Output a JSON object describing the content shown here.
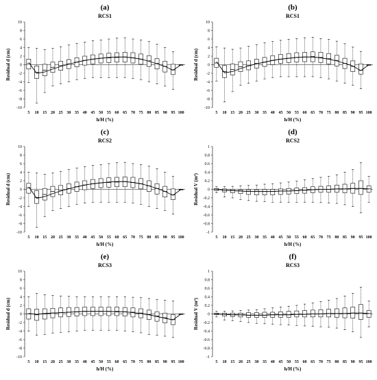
{
  "chart_data": [
    {
      "type": "boxplot",
      "panel_label": "(a)",
      "title": "RCS1",
      "xlabel": "h/H (%)",
      "ylabel": "Residual d (cm)",
      "ylim": [
        -10,
        10
      ],
      "yticks": [
        -10,
        -8,
        -6,
        -4,
        -2,
        0,
        2,
        4,
        6,
        8,
        10
      ],
      "categories": [
        "5",
        "10",
        "15",
        "20",
        "25",
        "30",
        "35",
        "40",
        "45",
        "50",
        "55",
        "60",
        "65",
        "70",
        "75",
        "80",
        "85",
        "90",
        "95",
        "100"
      ],
      "series": [
        {
          "median": [
            0.2,
            -1.8,
            -1.3,
            -0.6,
            -0.2,
            0.2,
            0.6,
            1.0,
            1.3,
            1.5,
            1.6,
            1.7,
            1.8,
            1.6,
            1.3,
            0.9,
            0.3,
            -0.4,
            -1.2,
            0.0
          ],
          "q1": [
            -1.0,
            -3.2,
            -2.6,
            -1.8,
            -1.3,
            -0.9,
            -0.5,
            -0.1,
            0.2,
            0.4,
            0.5,
            0.6,
            0.6,
            0.4,
            0.1,
            -0.4,
            -1.0,
            -1.7,
            -2.3,
            0.0
          ],
          "q3": [
            1.3,
            -0.3,
            0.1,
            0.6,
            0.8,
            1.2,
            1.6,
            2.0,
            2.3,
            2.5,
            2.7,
            2.8,
            2.9,
            2.8,
            2.5,
            2.1,
            1.4,
            0.8,
            0.1,
            0.0
          ],
          "whisker_low": [
            -4.2,
            -9.0,
            -6.5,
            -5.0,
            -4.5,
            -4.0,
            -3.5,
            -3.2,
            -3.0,
            -3.0,
            -3.0,
            -3.0,
            -3.0,
            -3.2,
            -3.5,
            -4.0,
            -4.5,
            -5.0,
            -5.8,
            0.0
          ],
          "whisker_high": [
            4.0,
            3.8,
            3.5,
            3.8,
            4.2,
            4.6,
            5.0,
            5.3,
            5.6,
            5.8,
            6.0,
            6.2,
            6.3,
            6.0,
            5.8,
            5.4,
            4.8,
            4.0,
            3.0,
            0.0
          ],
          "trend": [
            0.5,
            -2.0,
            -1.7,
            -1.0,
            -0.4,
            0.1,
            0.6,
            1.0,
            1.3,
            1.5,
            1.7,
            1.8,
            1.8,
            1.6,
            1.3,
            0.8,
            0.2,
            -0.4,
            -1.3,
            0.0
          ]
        }
      ]
    },
    {
      "type": "boxplot",
      "panel_label": "(b)",
      "title": "RCS1",
      "xlabel": "h/H (%)",
      "ylabel": "Residual d (cm)",
      "ylim": [
        -10,
        10
      ],
      "yticks": [
        -10,
        -8,
        -6,
        -4,
        -2,
        0,
        2,
        4,
        6,
        8,
        10
      ],
      "categories": [
        "5",
        "10",
        "15",
        "20",
        "25",
        "30",
        "35",
        "40",
        "45",
        "50",
        "55",
        "60",
        "65",
        "70",
        "75",
        "80",
        "85",
        "90",
        "95",
        "100"
      ],
      "series": [
        {
          "median": [
            0.4,
            -1.6,
            -1.1,
            -0.5,
            -0.1,
            0.3,
            0.6,
            1.0,
            1.3,
            1.5,
            1.7,
            1.8,
            1.9,
            1.7,
            1.4,
            1.0,
            0.3,
            -0.4,
            -1.3,
            0.0
          ],
          "q1": [
            -0.6,
            -3.0,
            -2.4,
            -1.6,
            -1.2,
            -0.8,
            -0.4,
            0.0,
            0.3,
            0.5,
            0.6,
            0.7,
            0.7,
            0.5,
            0.2,
            -0.3,
            -0.9,
            -1.6,
            -2.2,
            0.0
          ],
          "q3": [
            1.5,
            -0.2,
            0.2,
            0.7,
            0.9,
            1.3,
            1.7,
            2.1,
            2.4,
            2.6,
            2.8,
            2.9,
            3.0,
            2.9,
            2.6,
            2.2,
            1.5,
            0.9,
            0.2,
            0.0
          ],
          "whisker_low": [
            -3.8,
            -8.7,
            -6.3,
            -4.8,
            -4.3,
            -3.8,
            -3.3,
            -3.0,
            -2.8,
            -2.8,
            -2.8,
            -2.8,
            -2.8,
            -3.0,
            -3.3,
            -3.8,
            -4.3,
            -4.8,
            -5.6,
            0.0
          ],
          "whisker_high": [
            4.2,
            3.9,
            3.6,
            3.9,
            4.3,
            4.7,
            5.1,
            5.4,
            5.7,
            5.9,
            6.1,
            6.3,
            6.4,
            6.1,
            5.9,
            5.5,
            4.9,
            4.1,
            3.1,
            0.0
          ],
          "trend": [
            0.7,
            -1.9,
            -1.6,
            -0.9,
            -0.3,
            0.2,
            0.6,
            1.0,
            1.3,
            1.5,
            1.7,
            1.8,
            1.8,
            1.6,
            1.3,
            0.9,
            0.3,
            -0.3,
            -1.4,
            0.0
          ]
        }
      ]
    },
    {
      "type": "boxplot",
      "panel_label": "(c)",
      "title": "RCS2",
      "xlabel": "h/H (%)",
      "ylabel": "Residual d (cm)",
      "ylim": [
        -10,
        10
      ],
      "yticks": [
        -10,
        -8,
        -6,
        -4,
        -2,
        0,
        2,
        4,
        6,
        8,
        10
      ],
      "categories": [
        "5",
        "10",
        "15",
        "20",
        "25",
        "30",
        "35",
        "40",
        "45",
        "50",
        "55",
        "60",
        "65",
        "70",
        "75",
        "80",
        "85",
        "90",
        "95",
        "100"
      ],
      "series": [
        {
          "median": [
            0.3,
            -1.9,
            -1.2,
            -0.5,
            -0.2,
            0.2,
            0.6,
            1.0,
            1.3,
            1.5,
            1.6,
            1.7,
            1.8,
            1.6,
            1.3,
            0.8,
            0.2,
            -0.5,
            -1.3,
            0.0
          ],
          "q1": [
            -0.9,
            -3.3,
            -2.5,
            -1.7,
            -1.3,
            -0.9,
            -0.5,
            -0.1,
            0.2,
            0.4,
            0.5,
            0.6,
            0.6,
            0.4,
            0.1,
            -0.5,
            -1.1,
            -1.8,
            -2.4,
            0.0
          ],
          "q3": [
            1.4,
            -0.3,
            0.2,
            0.7,
            0.9,
            1.3,
            1.7,
            2.0,
            2.3,
            2.5,
            2.7,
            2.8,
            2.9,
            2.8,
            2.5,
            2.0,
            1.3,
            0.7,
            0.1,
            0.0
          ],
          "whisker_low": [
            -4.0,
            -8.9,
            -6.4,
            -5.0,
            -4.5,
            -4.0,
            -3.5,
            -3.2,
            -3.0,
            -3.0,
            -3.0,
            -3.0,
            -3.0,
            -3.2,
            -3.5,
            -4.0,
            -4.5,
            -5.0,
            -5.8,
            0.0
          ],
          "whisker_high": [
            4.0,
            3.8,
            3.5,
            3.8,
            4.2,
            4.6,
            5.0,
            5.3,
            5.6,
            5.8,
            6.0,
            6.2,
            6.3,
            6.0,
            5.8,
            5.4,
            4.8,
            4.0,
            3.0,
            0.0
          ],
          "trend": [
            0.6,
            -2.1,
            -1.7,
            -1.0,
            -0.4,
            0.1,
            0.6,
            1.0,
            1.3,
            1.5,
            1.7,
            1.8,
            1.8,
            1.6,
            1.3,
            0.8,
            0.2,
            -0.5,
            -1.4,
            0.0
          ]
        }
      ]
    },
    {
      "type": "boxplot",
      "panel_label": "(d)",
      "title": "RCS2",
      "xlabel": "h/H (%)",
      "ylabel": "Residual V (m³)",
      "ylim": [
        -1,
        1
      ],
      "yticks": [
        -1,
        -0.8,
        -0.6,
        -0.4,
        -0.2,
        0,
        0.2,
        0.4,
        0.6,
        0.8,
        1
      ],
      "categories": [
        "5",
        "10",
        "15",
        "20",
        "25",
        "30",
        "35",
        "40",
        "45",
        "50",
        "55",
        "60",
        "65",
        "70",
        "75",
        "80",
        "85",
        "90",
        "95",
        "100"
      ],
      "series": [
        {
          "median": [
            0.0,
            -0.02,
            -0.03,
            -0.04,
            -0.05,
            -0.05,
            -0.05,
            -0.05,
            -0.04,
            -0.04,
            -0.03,
            -0.02,
            -0.01,
            0.0,
            0.0,
            0.01,
            0.01,
            0.02,
            0.02,
            0.01
          ],
          "q1": [
            -0.03,
            -0.06,
            -0.08,
            -0.1,
            -0.12,
            -0.13,
            -0.13,
            -0.13,
            -0.12,
            -0.11,
            -0.1,
            -0.09,
            -0.08,
            -0.07,
            -0.07,
            -0.07,
            -0.08,
            -0.09,
            -0.12,
            -0.07
          ],
          "q3": [
            0.02,
            0.01,
            0.0,
            -0.01,
            -0.01,
            -0.01,
            0.0,
            0.0,
            0.01,
            0.02,
            0.03,
            0.04,
            0.06,
            0.07,
            0.08,
            0.1,
            0.12,
            0.14,
            0.2,
            0.08
          ],
          "whisker_low": [
            -0.08,
            -0.18,
            -0.2,
            -0.24,
            -0.26,
            -0.28,
            -0.29,
            -0.3,
            -0.3,
            -0.3,
            -0.3,
            -0.3,
            -0.3,
            -0.31,
            -0.32,
            -0.33,
            -0.36,
            -0.4,
            -0.55,
            -0.3
          ],
          "whisker_high": [
            0.06,
            0.06,
            0.07,
            0.08,
            0.09,
            0.1,
            0.12,
            0.13,
            0.15,
            0.17,
            0.19,
            0.22,
            0.25,
            0.28,
            0.3,
            0.34,
            0.4,
            0.46,
            0.62,
            0.3
          ],
          "trend": [
            0.0,
            -0.02,
            -0.03,
            -0.04,
            -0.05,
            -0.05,
            -0.05,
            -0.05,
            -0.04,
            -0.04,
            -0.03,
            -0.02,
            -0.01,
            0.0,
            0.0,
            0.01,
            0.01,
            0.02,
            0.02,
            0.01
          ]
        }
      ]
    },
    {
      "type": "boxplot",
      "panel_label": "(e)",
      "title": "RCS3",
      "xlabel": "h/H (%)",
      "ylabel": "Residual d (cm)",
      "ylim": [
        -10,
        10
      ],
      "yticks": [
        -10,
        -8,
        -6,
        -4,
        -2,
        0,
        2,
        4,
        6,
        8,
        10
      ],
      "categories": [
        "5",
        "10",
        "15",
        "20",
        "25",
        "30",
        "35",
        "40",
        "45",
        "50",
        "55",
        "60",
        "65",
        "70",
        "75",
        "80",
        "85",
        "90",
        "95",
        "100"
      ],
      "series": [
        {
          "median": [
            0.0,
            -0.2,
            0.0,
            0.2,
            0.3,
            0.4,
            0.5,
            0.6,
            0.6,
            0.6,
            0.6,
            0.6,
            0.5,
            0.4,
            0.2,
            -0.1,
            -0.5,
            -0.9,
            -1.3,
            0.0
          ],
          "q1": [
            -1.2,
            -1.5,
            -1.2,
            -0.9,
            -0.7,
            -0.6,
            -0.5,
            -0.4,
            -0.4,
            -0.4,
            -0.4,
            -0.4,
            -0.5,
            -0.7,
            -0.9,
            -1.3,
            -1.7,
            -2.1,
            -2.5,
            0.0
          ],
          "q3": [
            1.2,
            1.1,
            1.2,
            1.3,
            1.4,
            1.5,
            1.5,
            1.6,
            1.6,
            1.6,
            1.6,
            1.6,
            1.5,
            1.4,
            1.2,
            0.9,
            0.5,
            0.2,
            -0.2,
            0.0
          ],
          "whisker_low": [
            -4.0,
            -5.0,
            -4.8,
            -4.5,
            -4.3,
            -4.2,
            -4.0,
            -3.8,
            -3.8,
            -3.8,
            -3.8,
            -3.8,
            -4.0,
            -4.2,
            -4.4,
            -4.8,
            -5.0,
            -5.2,
            -5.5,
            0.0
          ],
          "whisker_high": [
            4.0,
            4.8,
            4.5,
            4.3,
            4.2,
            4.1,
            4.0,
            4.0,
            4.0,
            4.0,
            4.0,
            4.0,
            4.0,
            3.9,
            3.8,
            3.6,
            3.4,
            3.2,
            3.0,
            0.0
          ],
          "trend": [
            0.1,
            -0.1,
            0.1,
            0.2,
            0.3,
            0.4,
            0.5,
            0.6,
            0.6,
            0.6,
            0.6,
            0.5,
            0.5,
            0.3,
            0.1,
            -0.2,
            -0.6,
            -1.0,
            -1.4,
            0.0
          ]
        }
      ]
    },
    {
      "type": "boxplot",
      "panel_label": "(f)",
      "title": "RCS3",
      "xlabel": "h/H (%)",
      "ylabel": "Residual V (m³)",
      "ylim": [
        -1,
        1
      ],
      "yticks": [
        -1,
        -0.8,
        -0.6,
        -0.4,
        -0.2,
        0,
        0.2,
        0.4,
        0.6,
        0.8,
        1
      ],
      "categories": [
        "5",
        "10",
        "15",
        "20",
        "25",
        "30",
        "35",
        "40",
        "45",
        "50",
        "55",
        "60",
        "65",
        "70",
        "75",
        "80",
        "85",
        "90",
        "95",
        "100"
      ],
      "series": [
        {
          "median": [
            0.0,
            -0.01,
            -0.02,
            -0.02,
            -0.03,
            -0.03,
            -0.03,
            -0.02,
            -0.02,
            -0.02,
            -0.01,
            -0.01,
            0.0,
            0.0,
            0.01,
            0.01,
            0.01,
            0.02,
            0.02,
            0.01
          ],
          "q1": [
            -0.02,
            -0.05,
            -0.06,
            -0.07,
            -0.08,
            -0.08,
            -0.08,
            -0.08,
            -0.08,
            -0.08,
            -0.07,
            -0.07,
            -0.07,
            -0.07,
            -0.07,
            -0.08,
            -0.09,
            -0.1,
            -0.13,
            -0.08
          ],
          "q3": [
            0.02,
            0.02,
            0.02,
            0.02,
            0.03,
            0.03,
            0.04,
            0.04,
            0.05,
            0.06,
            0.07,
            0.08,
            0.09,
            0.1,
            0.11,
            0.12,
            0.14,
            0.16,
            0.22,
            0.08
          ],
          "whisker_low": [
            -0.07,
            -0.14,
            -0.16,
            -0.18,
            -0.2,
            -0.22,
            -0.23,
            -0.24,
            -0.25,
            -0.26,
            -0.27,
            -0.28,
            -0.29,
            -0.3,
            -0.31,
            -0.33,
            -0.37,
            -0.42,
            -0.55,
            -0.3
          ],
          "whisker_high": [
            0.06,
            0.06,
            0.07,
            0.08,
            0.09,
            0.1,
            0.12,
            0.14,
            0.16,
            0.18,
            0.2,
            0.23,
            0.26,
            0.29,
            0.32,
            0.36,
            0.42,
            0.48,
            0.62,
            0.3
          ],
          "trend": [
            0.0,
            -0.01,
            -0.02,
            -0.02,
            -0.03,
            -0.03,
            -0.03,
            -0.02,
            -0.02,
            -0.02,
            -0.01,
            -0.01,
            0.0,
            0.0,
            0.01,
            0.01,
            0.01,
            0.02,
            0.02,
            0.01
          ]
        }
      ]
    }
  ]
}
